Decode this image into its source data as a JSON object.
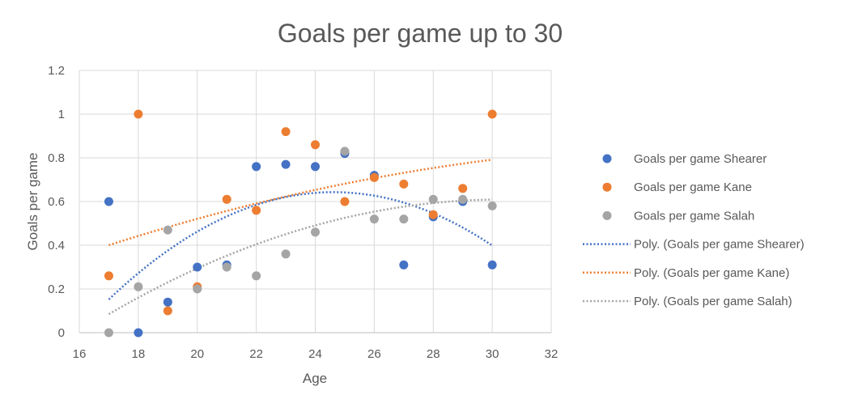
{
  "chart_data": {
    "type": "scatter",
    "title": "Goals per game up to 30",
    "xlabel": "Age",
    "ylabel": "Goals per game",
    "xlim": [
      16,
      32
    ],
    "ylim": [
      0,
      1.2
    ],
    "x_ticks": [
      "16",
      "18",
      "20",
      "22",
      "24",
      "26",
      "28",
      "30",
      "32"
    ],
    "y_ticks": [
      "0",
      "0.2",
      "0.4",
      "0.6",
      "0.8",
      "1",
      "1.2"
    ],
    "grid": true,
    "legend_position": "right",
    "series": [
      {
        "name": "Goals per game Shearer",
        "color": "#4472C4",
        "points": [
          [
            17,
            0.6
          ],
          [
            18,
            0.0
          ],
          [
            19,
            0.14
          ],
          [
            20,
            0.3
          ],
          [
            21,
            0.31
          ],
          [
            22,
            0.76
          ],
          [
            23,
            0.77
          ],
          [
            24,
            0.76
          ],
          [
            25,
            0.82
          ],
          [
            26,
            0.72
          ],
          [
            27,
            0.31
          ],
          [
            28,
            0.53
          ],
          [
            29,
            0.6
          ],
          [
            30,
            0.31
          ]
        ]
      },
      {
        "name": "Goals per game Kane",
        "color": "#ED7D31",
        "points": [
          [
            17,
            0.26
          ],
          [
            18,
            1.0
          ],
          [
            19,
            0.1
          ],
          [
            20,
            0.21
          ],
          [
            21,
            0.61
          ],
          [
            22,
            0.56
          ],
          [
            23,
            0.92
          ],
          [
            24,
            0.86
          ],
          [
            25,
            0.6
          ],
          [
            26,
            0.71
          ],
          [
            27,
            0.68
          ],
          [
            28,
            0.54
          ],
          [
            29,
            0.66
          ],
          [
            30,
            1.0
          ]
        ]
      },
      {
        "name": "Goals per game Salah",
        "color": "#A5A5A5",
        "points": [
          [
            17,
            0.0
          ],
          [
            18,
            0.21
          ],
          [
            19,
            0.47
          ],
          [
            20,
            0.2
          ],
          [
            21,
            0.3
          ],
          [
            22,
            0.26
          ],
          [
            23,
            0.36
          ],
          [
            24,
            0.46
          ],
          [
            25,
            0.83
          ],
          [
            26,
            0.52
          ],
          [
            27,
            0.52
          ],
          [
            28,
            0.61
          ],
          [
            29,
            0.61
          ],
          [
            30,
            0.58
          ]
        ]
      }
    ],
    "trendlines": [
      {
        "name": "Poly. (Goals per game Shearer)",
        "color": "#4472C4",
        "type": "polynomial",
        "x_range": [
          17,
          30
        ]
      },
      {
        "name": "Poly. (Goals per game Kane)",
        "color": "#ED7D31",
        "type": "polynomial",
        "x_range": [
          17,
          30
        ]
      },
      {
        "name": "Poly. (Goals per game Salah)",
        "color": "#A5A5A5",
        "type": "polynomial",
        "x_range": [
          17,
          30
        ]
      }
    ]
  }
}
